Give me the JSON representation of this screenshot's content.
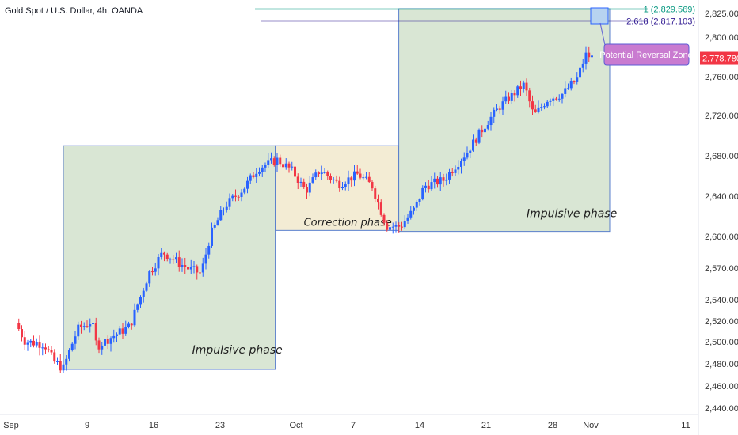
{
  "title": "Gold Spot / U.S. Dollar, 4h, OANDA",
  "chart_data": {
    "type": "candlestick",
    "title": "Gold Spot / U.S. Dollar, 4h, OANDA",
    "ylim": [
      2430,
      2840
    ],
    "y_ticks": [
      {
        "value": 2825,
        "label": "2,825.000"
      },
      {
        "value": 2800,
        "label": "2,800.000"
      },
      {
        "value": 2760,
        "label": "2,760.000"
      },
      {
        "value": 2720,
        "label": "2,720.000"
      },
      {
        "value": 2680,
        "label": "2,680.000"
      },
      {
        "value": 2640,
        "label": "2,640.000"
      },
      {
        "value": 2600,
        "label": "2,600.000"
      },
      {
        "value": 2570,
        "label": "2,570.000"
      },
      {
        "value": 2540,
        "label": "2,540.000"
      },
      {
        "value": 2520,
        "label": "2,520.000"
      },
      {
        "value": 2500,
        "label": "2,500.000"
      },
      {
        "value": 2480,
        "label": "2,480.000"
      },
      {
        "value": 2460,
        "label": "2,460.000"
      },
      {
        "value": 2440,
        "label": "2,440.000"
      }
    ],
    "x_ticks": [
      {
        "day": 0,
        "label": "Sep"
      },
      {
        "day": 8,
        "label": "9"
      },
      {
        "day": 15,
        "label": "16"
      },
      {
        "day": 22,
        "label": "23"
      },
      {
        "day": 30,
        "label": "Oct"
      },
      {
        "day": 36,
        "label": "7"
      },
      {
        "day": 43,
        "label": "14"
      },
      {
        "day": 50,
        "label": "21"
      },
      {
        "day": 57,
        "label": "28"
      },
      {
        "day": 61,
        "label": "Nov"
      },
      {
        "day": 71,
        "label": "11"
      }
    ],
    "last_price": {
      "value": 2778.78,
      "label": "2,778.780",
      "color": "#f23645"
    },
    "fib_levels": [
      {
        "label": "1 (2,829.569)",
        "value": 2829.569,
        "color": "#089981"
      },
      {
        "label": "2.618 (2,817.103)",
        "value": 2817.103,
        "color": "#311b92"
      }
    ],
    "zones": [
      {
        "label": "Impulsive phase",
        "start_day": 5,
        "end_day": 27.3,
        "low": 2475,
        "high": 2690,
        "fill": "#d9e6d4"
      },
      {
        "label": "Correction phase",
        "start_day": 27.3,
        "end_day": 40.3,
        "low": 2606,
        "high": 2690,
        "fill": "#f3ecd4"
      },
      {
        "label": "Impulsive phase",
        "start_day": 40.3,
        "end_day": 62.5,
        "low": 2605,
        "high": 2830,
        "fill": "#d9e6d4"
      }
    ],
    "callout": {
      "label": "Potential Reversal Zone",
      "fill": "#c97bd0",
      "border": "#5b5bd6"
    },
    "up_color": "#2962ff",
    "down_color": "#f23645",
    "key_points": [
      {
        "day": 0,
        "value": 2518
      },
      {
        "day": 1,
        "value": 2500
      },
      {
        "day": 3,
        "value": 2498
      },
      {
        "day": 4,
        "value": 2482
      },
      {
        "day": 5,
        "value": 2476
      },
      {
        "day": 6.5,
        "value": 2512
      },
      {
        "day": 8,
        "value": 2520
      },
      {
        "day": 8.5,
        "value": 2496
      },
      {
        "day": 12,
        "value": 2515
      },
      {
        "day": 14,
        "value": 2565
      },
      {
        "day": 15.5,
        "value": 2585
      },
      {
        "day": 18,
        "value": 2570
      },
      {
        "day": 19.5,
        "value": 2565
      },
      {
        "day": 20.5,
        "value": 2602
      },
      {
        "day": 22,
        "value": 2630
      },
      {
        "day": 24,
        "value": 2648
      },
      {
        "day": 25.5,
        "value": 2668
      },
      {
        "day": 27.5,
        "value": 2676
      },
      {
        "day": 29,
        "value": 2666
      },
      {
        "day": 30.5,
        "value": 2645
      },
      {
        "day": 32,
        "value": 2666
      },
      {
        "day": 34,
        "value": 2652
      },
      {
        "day": 36,
        "value": 2662
      },
      {
        "day": 37.5,
        "value": 2650
      },
      {
        "day": 39,
        "value": 2610
      },
      {
        "day": 40.5,
        "value": 2610
      },
      {
        "day": 42,
        "value": 2628
      },
      {
        "day": 43,
        "value": 2650
      },
      {
        "day": 45,
        "value": 2656
      },
      {
        "day": 47.5,
        "value": 2684
      },
      {
        "day": 49.5,
        "value": 2712
      },
      {
        "day": 51,
        "value": 2730
      },
      {
        "day": 53.5,
        "value": 2752
      },
      {
        "day": 54.5,
        "value": 2720
      },
      {
        "day": 56,
        "value": 2737
      },
      {
        "day": 57.5,
        "value": 2742
      },
      {
        "day": 59,
        "value": 2757
      },
      {
        "day": 60,
        "value": 2782
      },
      {
        "day": 60.8,
        "value": 2778.78
      }
    ]
  }
}
